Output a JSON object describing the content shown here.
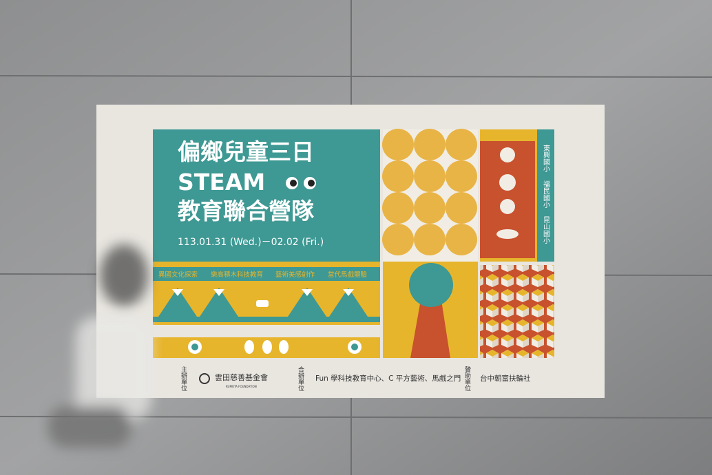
{
  "poster": {
    "title_lines": [
      "偏鄉兒童三日",
      "STEAM",
      "教育聯合營隊"
    ],
    "date": "113.01.31 (Wed.)－02.02 (Fri.)",
    "activities": [
      "異國文化探索",
      "樂高積木科技教育",
      "藝術美感創作",
      "當代馬戲體驗"
    ],
    "schools": [
      "東興國小",
      "福民國小",
      "昆山國小"
    ],
    "footer": {
      "organizer_label": "主辦單位",
      "organizer": "雲田慈善基金會",
      "organizer_en": "KUMOTA FOUNDATION",
      "co_organizer_label": "合辦單位",
      "co_organizers": "Fun 學科技教育中心、C 平方藝術、馬戲之門",
      "sponsor_label": "贊助單位",
      "sponsor": "台中朝富扶輪社"
    }
  }
}
